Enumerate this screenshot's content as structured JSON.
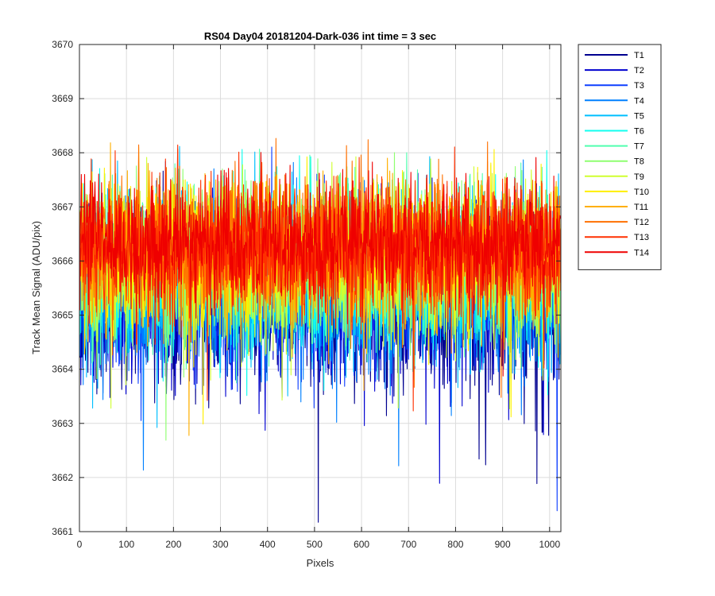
{
  "chart_data": {
    "type": "line",
    "title": "RS04 Day04 20181204-Dark-036 int time = 3 sec",
    "xlabel": "Pixels",
    "ylabel": "Track Mean Signal (ADU/pix)",
    "xlim": [
      0,
      1024
    ],
    "ylim": [
      3661,
      3670
    ],
    "xticks": [
      0,
      100,
      200,
      300,
      400,
      500,
      600,
      700,
      800,
      900,
      1000
    ],
    "yticks": [
      3661,
      3662,
      3663,
      3664,
      3665,
      3666,
      3667,
      3668,
      3669,
      3670
    ],
    "grid": true,
    "legend_position": "outside-right-top",
    "x": {
      "start": 1,
      "end": 1024,
      "step": 1
    },
    "series": [
      {
        "name": "T1",
        "color": "#00008F",
        "mean": 3665.15,
        "spread": 1.5
      },
      {
        "name": "T2",
        "color": "#0000CF",
        "mean": 3665.3,
        "spread": 1.45
      },
      {
        "name": "T3",
        "color": "#0F3FFF",
        "mean": 3665.45,
        "spread": 1.4
      },
      {
        "name": "T4",
        "color": "#0080FF",
        "mean": 3665.55,
        "spread": 1.4
      },
      {
        "name": "T5",
        "color": "#00BFFF",
        "mean": 3665.7,
        "spread": 1.35
      },
      {
        "name": "T6",
        "color": "#10FFEF",
        "mean": 3665.8,
        "spread": 1.3
      },
      {
        "name": "T7",
        "color": "#50FFAF",
        "mean": 3665.9,
        "spread": 1.3
      },
      {
        "name": "T8",
        "color": "#8FFF70",
        "mean": 3666.0,
        "spread": 1.25
      },
      {
        "name": "T9",
        "color": "#CFFF30",
        "mean": 3666.05,
        "spread": 1.25
      },
      {
        "name": "T10",
        "color": "#FFEF00",
        "mean": 3666.1,
        "spread": 1.2
      },
      {
        "name": "T11",
        "color": "#FFAF00",
        "mean": 3666.15,
        "spread": 1.2
      },
      {
        "name": "T12",
        "color": "#FF7000",
        "mean": 3666.2,
        "spread": 1.15
      },
      {
        "name": "T13",
        "color": "#FF3000",
        "mean": 3666.25,
        "spread": 1.15
      },
      {
        "name": "T14",
        "color": "#EF0000",
        "mean": 3666.3,
        "spread": 1.1
      }
    ]
  }
}
